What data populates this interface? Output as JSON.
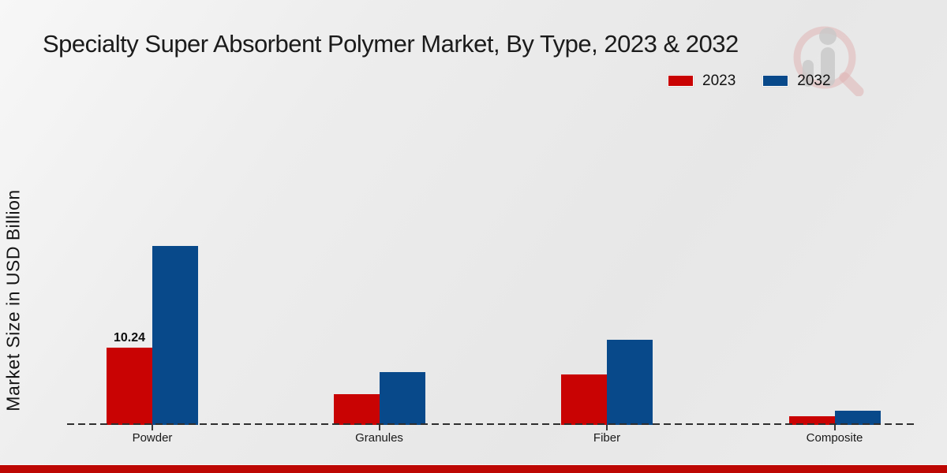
{
  "header": {
    "title": "Specialty Super Absorbent Polymer Market, By Type, 2023 & 2032"
  },
  "y_axis": {
    "label": "Market Size in USD Billion"
  },
  "legend": {
    "items": [
      {
        "label": "2023",
        "color": "#c90303"
      },
      {
        "label": "2032",
        "color": "#08498a"
      }
    ]
  },
  "watermark": {
    "name": "magnifier-bar-chart-logo"
  },
  "footer": {
    "bar_color": "#bd0703"
  },
  "chart_data": {
    "type": "bar",
    "title": "Specialty Super Absorbent Polymer Market, By Type, 2023 & 2032",
    "xlabel": "",
    "ylabel": "Market Size in USD Billion",
    "categories": [
      "Powder",
      "Granules",
      "Fiber",
      "Composite"
    ],
    "series": [
      {
        "name": "2023",
        "color": "#c90303",
        "values": [
          10.24,
          4.1,
          6.75,
          1.2
        ]
      },
      {
        "name": "2032",
        "color": "#08498a",
        "values": [
          23.85,
          7.0,
          11.35,
          1.85
        ]
      }
    ],
    "annotations": [
      {
        "category": "Powder",
        "series": "2023",
        "text": "10.24"
      }
    ],
    "ylim": [
      0,
      25
    ],
    "grid": false,
    "axis_line": "dashed-baseline",
    "legend_position": "top-right"
  }
}
